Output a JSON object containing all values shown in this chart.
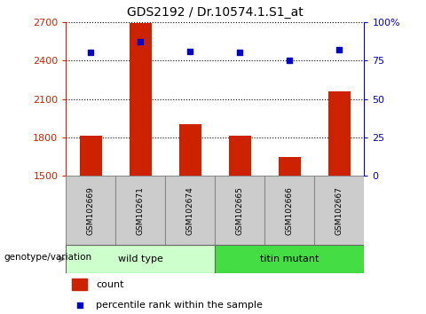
{
  "title": "GDS2192 / Dr.10574.1.S1_at",
  "samples": [
    "GSM102669",
    "GSM102671",
    "GSM102674",
    "GSM102665",
    "GSM102666",
    "GSM102667"
  ],
  "counts": [
    1810,
    2690,
    1900,
    1810,
    1650,
    2160
  ],
  "percentiles": [
    80,
    87,
    81,
    80,
    75,
    82
  ],
  "ylim_left": [
    1500,
    2700
  ],
  "ylim_right": [
    0,
    100
  ],
  "yticks_left": [
    1500,
    1800,
    2100,
    2400,
    2700
  ],
  "yticks_right": [
    0,
    25,
    50,
    75,
    100
  ],
  "bar_color": "#cc2200",
  "dot_color": "#0000cc",
  "wild_type_count": 3,
  "mutant_count": 3,
  "wild_type_label": "wild type",
  "mutant_label": "titin mutant",
  "wild_type_color": "#ccffcc",
  "mutant_color": "#44dd44",
  "genotype_label": "genotype/variation",
  "legend_count": "count",
  "legend_percentile": "percentile rank within the sample",
  "grid_color": "black",
  "label_bg_color": "#cccccc",
  "label_edge_color": "#888888"
}
